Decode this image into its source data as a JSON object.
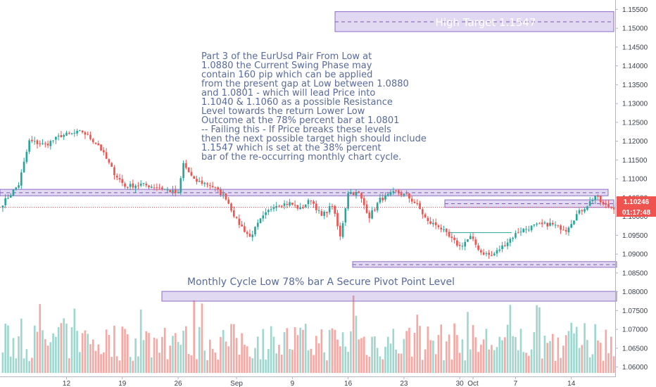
{
  "chart_data": {
    "type": "candlestick",
    "pair_note": "Part 3 of the EurUsd Pair From Low at 1.0880 the Current Swing Phase may contain 160 pip which can be applied from the present gap at Low between 1.0880 and 1.0801 - which will lead Price into 1.1040 & 1.1060 as a possible Resistance Level towards the return Lower Low Outcome at the 78% percent bar at 1.0801 -- Failing this - If Price breaks these levels then the next possible target high should include 1.1547 which is set at the 38% percent bar of the re-occurring monthly chart cycle.",
    "annotation_lines": [
      "Part 3 of the EurUsd Pair From Low at",
      "1.0880 the Current Swing Phase may",
      "contain 160 pip which can be applied",
      "from the present gap at Low between 1.0880",
      "and 1.0801 - which will lead Price into",
      "1.1040 & 1.1060 as a possible Resistance",
      "Level towards the return Lower Low",
      "Outcome at the 78% percent bar at 1.0801",
      "-- Failing this - If Price breaks these levels",
      "then the next possible target high should include",
      "1.1547 which is set at the 38% percent",
      "bar of the re-occurring monthly chart cycle."
    ],
    "high_target_label": "High Target 1.1547",
    "monthly_low_label": "Monthly Cycle Low 78% bar A Secure Pivot Point Level",
    "y_axis": {
      "range": [
        1.0575,
        1.1575
      ],
      "ticks": [
        "1.15500",
        "1.15000",
        "1.14500",
        "1.14000",
        "1.13500",
        "1.13000",
        "1.12500",
        "1.12000",
        "1.11500",
        "1.11000",
        "1.10500",
        "1.10000",
        "1.09500",
        "1.09000",
        "1.08500",
        "1.08000",
        "1.07500",
        "1.07000",
        "1.06500",
        "1.06000"
      ]
    },
    "x_axis": {
      "ticks": [
        {
          "label": "12",
          "bar": 24
        },
        {
          "label": "19",
          "bar": 45
        },
        {
          "label": "26",
          "bar": 66
        },
        {
          "label": "Sep",
          "bar": 88
        },
        {
          "label": "9",
          "bar": 109
        },
        {
          "label": "16",
          "bar": 130
        },
        {
          "label": "23",
          "bar": 151
        },
        {
          "label": "30",
          "bar": 172
        },
        {
          "label": "Oct",
          "bar": 177
        },
        {
          "label": "7",
          "bar": 193
        },
        {
          "label": "14",
          "bar": 214
        }
      ]
    },
    "last_price": "1.10246",
    "countdown": "01:17:48",
    "zones": [
      {
        "name": "high-target",
        "from": 1.1491,
        "to": 1.1544,
        "mid": 1.1517
      },
      {
        "name": "resistance",
        "from": 1.1055,
        "to": 1.1072,
        "mid": 1.1063
      },
      {
        "name": "near-price",
        "from": 1.1024,
        "to": 1.1044,
        "mid": 1.1034
      },
      {
        "name": "low-1.0880",
        "from": 1.0865,
        "to": 1.088,
        "mid": 1.0872
      },
      {
        "name": "monthly-low",
        "from": 1.0775,
        "to": 1.0801
      }
    ],
    "level_lines": [
      {
        "name": "swing-1.0955",
        "value": 1.0957
      }
    ],
    "price_path": [
      [
        0,
        1.1035
      ],
      [
        6,
        1.1085
      ],
      [
        10,
        1.12
      ],
      [
        16,
        1.119
      ],
      [
        22,
        1.1215
      ],
      [
        30,
        1.1225
      ],
      [
        36,
        1.119
      ],
      [
        42,
        1.1115
      ],
      [
        46,
        1.108
      ],
      [
        52,
        1.1085
      ],
      [
        60,
        1.1075
      ],
      [
        66,
        1.106
      ],
      [
        68,
        1.114
      ],
      [
        72,
        1.1095
      ],
      [
        78,
        1.1085
      ],
      [
        84,
        1.105
      ],
      [
        88,
        1.099
      ],
      [
        93,
        1.0945
      ],
      [
        97,
        1.099
      ],
      [
        102,
        1.103
      ],
      [
        108,
        1.1035
      ],
      [
        112,
        1.102
      ],
      [
        116,
        1.1045
      ],
      [
        120,
        1.1
      ],
      [
        124,
        1.103
      ],
      [
        127,
        1.0945
      ],
      [
        130,
        1.1065
      ],
      [
        134,
        1.106
      ],
      [
        138,
        1.1
      ],
      [
        142,
        1.1045
      ],
      [
        148,
        1.1065
      ],
      [
        152,
        1.1055
      ],
      [
        156,
        1.103
      ],
      [
        160,
        1.0985
      ],
      [
        164,
        1.0975
      ],
      [
        168,
        1.0945
      ],
      [
        172,
        1.092
      ],
      [
        176,
        1.0945
      ],
      [
        180,
        1.0905
      ],
      [
        184,
        1.0895
      ],
      [
        188,
        1.092
      ],
      [
        194,
        1.096
      ],
      [
        200,
        1.0975
      ],
      [
        206,
        1.098
      ],
      [
        212,
        1.0965
      ],
      [
        216,
        1.1005
      ],
      [
        220,
        1.103
      ],
      [
        223,
        1.1055
      ],
      [
        226,
        1.103
      ],
      [
        230,
        1.1024
      ]
    ],
    "volume_range": [
      0,
      80
    ]
  }
}
